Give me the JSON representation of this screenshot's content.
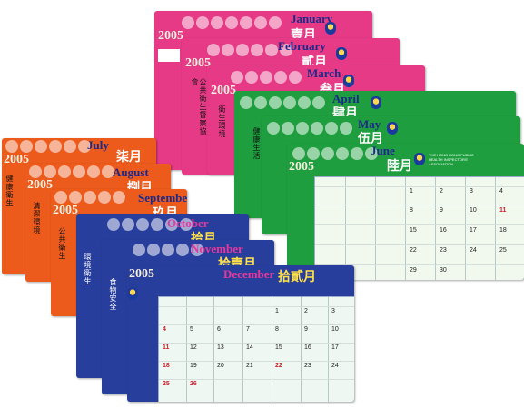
{
  "year": "2005",
  "months": {
    "jan": {
      "en": "January",
      "zh": "壹月"
    },
    "feb": {
      "en": "February",
      "zh": "貳月"
    },
    "mar": {
      "en": "March",
      "zh": "叁月"
    },
    "apr": {
      "en": "April",
      "zh": "肆月"
    },
    "may": {
      "en": "May",
      "zh": "伍月"
    },
    "jun": {
      "en": "June",
      "zh": "陸月"
    },
    "jul": {
      "en": "July",
      "zh": "柒月"
    },
    "aug": {
      "en": "August",
      "zh": "捌月"
    },
    "sep": {
      "en": "September",
      "zh": "玖月"
    },
    "oct": {
      "en": "October",
      "zh": "拾月"
    },
    "nov": {
      "en": "November",
      "zh": "拾壹月"
    },
    "dec": {
      "en": "December",
      "zh": "拾貳月"
    }
  },
  "association": "THE HONG KONG PUBLIC HEALTH INSPECTORS' ASSOCIATION",
  "colors": {
    "pink": "#e63a86",
    "green": "#1e9e3e",
    "orange": "#ec5a1c",
    "blue": "#283e9c"
  },
  "june_grid": {
    "day_nums": [
      "1",
      "2",
      "3",
      "4",
      "8",
      "9",
      "10",
      "11",
      "15",
      "16",
      "17",
      "18",
      "22",
      "23",
      "24",
      "25",
      "29",
      "30"
    ]
  },
  "dec_grid": {
    "day_nums": [
      "1",
      "2",
      "3",
      "4",
      "5",
      "6",
      "7",
      "8",
      "9",
      "10",
      "11",
      "12",
      "13",
      "14",
      "15",
      "16",
      "17",
      "18",
      "19",
      "20",
      "21",
      "22",
      "23",
      "24",
      "25",
      "26"
    ]
  }
}
